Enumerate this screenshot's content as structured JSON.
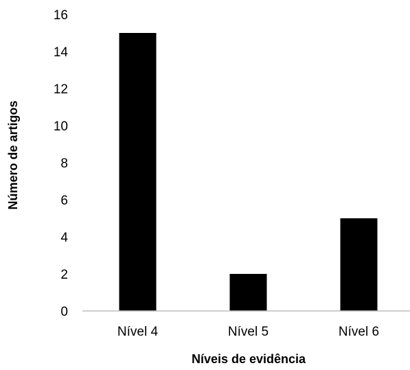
{
  "chart_data": {
    "type": "bar",
    "title": "",
    "xlabel": "Níveis de evidência",
    "ylabel": "Número de artigos",
    "categories": [
      "Nível 4",
      "Nível 5",
      "Nível 6"
    ],
    "values": [
      15,
      2,
      5
    ],
    "ylim": [
      0,
      16
    ],
    "yticks": [
      0,
      2,
      4,
      6,
      8,
      10,
      12,
      14,
      16
    ],
    "grid": false,
    "legend": "none",
    "bar_color": "#000000",
    "axis_color": "#bfbfbf"
  }
}
